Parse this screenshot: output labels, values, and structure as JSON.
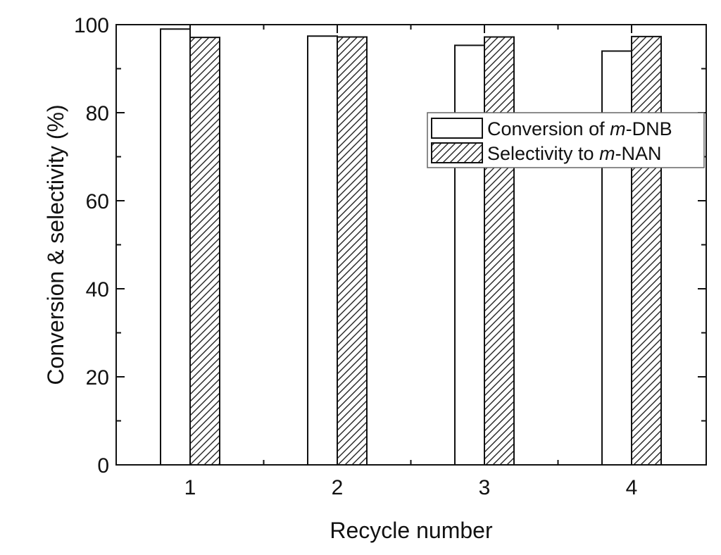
{
  "chart_data": {
    "type": "bar",
    "categories": [
      "1",
      "2",
      "3",
      "4"
    ],
    "series": [
      {
        "name": "Conversion of m-DNB",
        "label_parts": {
          "prefix": "Conversion of ",
          "italic": "m",
          "suffix": "-DNB"
        },
        "pattern": "open",
        "values": [
          99,
          97.4,
          95.3,
          94
        ]
      },
      {
        "name": "Selectivity to m-NAN",
        "label_parts": {
          "prefix": "Selectivity to ",
          "italic": "m",
          "suffix": "-NAN"
        },
        "pattern": "hatched",
        "values": [
          97.1,
          97.2,
          97.2,
          97.3
        ]
      }
    ],
    "xlabel": "Recycle number",
    "ylabel": "Conversion & selectivity (%)",
    "ylim": [
      0,
      100
    ],
    "yticks": [
      0,
      20,
      40,
      60,
      80,
      100
    ],
    "legend_position": "upper-right",
    "grid": false
  }
}
